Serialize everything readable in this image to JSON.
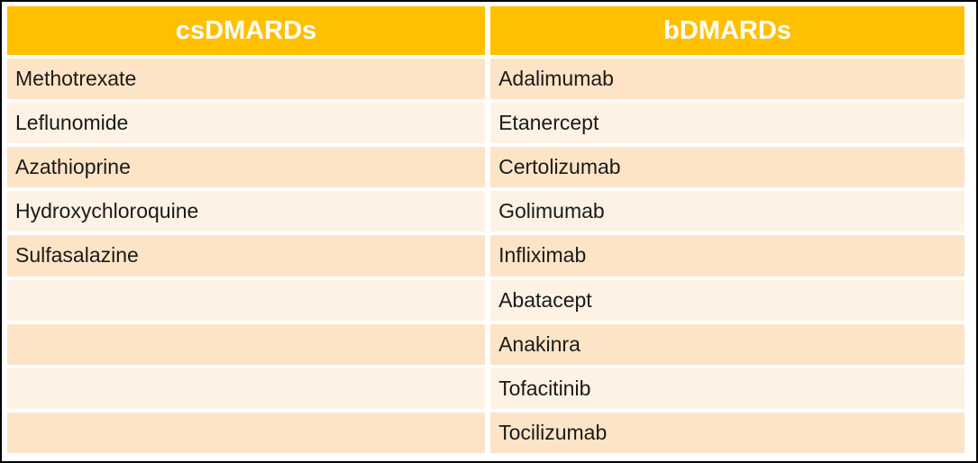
{
  "colors": {
    "background": "#FFFFFF",
    "frame": "#000000",
    "header_bg": "#FFC000",
    "header_text": "#FFFFFF",
    "row_dark": "#FDE4C6",
    "row_light": "#FEF2E4",
    "body_text": "#1A1A1A"
  },
  "table": {
    "columns": [
      {
        "header": "csDMARDs",
        "rows": [
          "Methotrexate",
          "Leflunomide",
          "Azathioprine",
          "Hydroxychloroquine",
          "Sulfasalazine",
          "",
          "",
          "",
          ""
        ]
      },
      {
        "header": "bDMARDs",
        "rows": [
          "Adalimumab",
          "Etanercept",
          "Certolizumab",
          "Golimumab",
          "Infliximab",
          "Abatacept",
          "Anakinra",
          "Tofacitinib",
          "Tocilizumab"
        ]
      }
    ]
  }
}
